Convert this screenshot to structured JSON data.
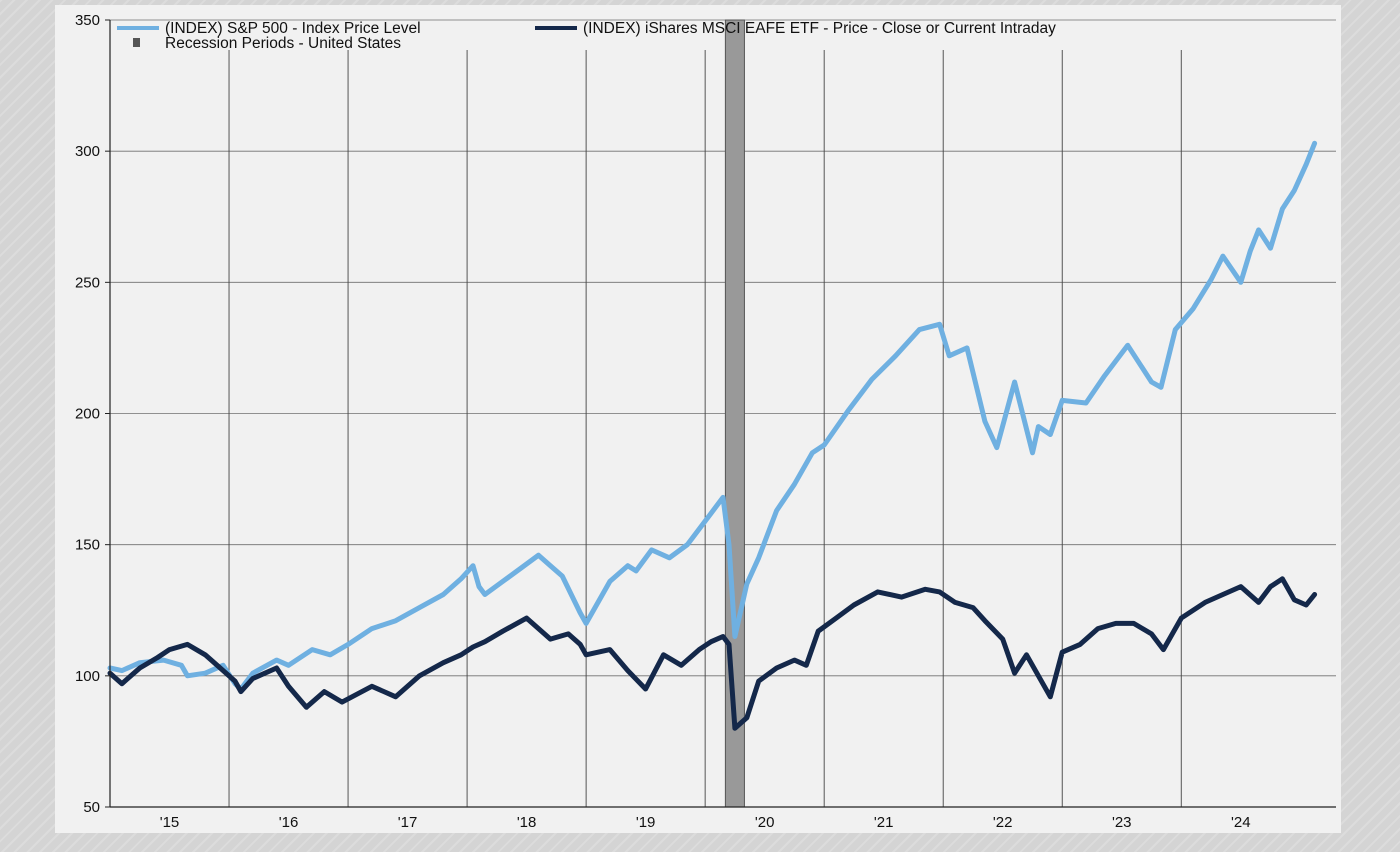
{
  "chart_data": {
    "type": "line",
    "title": "",
    "xlabel": "",
    "ylabel": "",
    "ylim": [
      50,
      350
    ],
    "yticks": [
      50,
      100,
      150,
      200,
      250,
      300,
      350
    ],
    "xlim": [
      2015.0,
      2025.3
    ],
    "xtick_labels": [
      {
        "label": "'15",
        "x": 2015.5
      },
      {
        "label": "'16",
        "x": 2016.5
      },
      {
        "label": "'17",
        "x": 2017.5
      },
      {
        "label": "'18",
        "x": 2018.5
      },
      {
        "label": "'19",
        "x": 2019.5
      },
      {
        "label": "'20",
        "x": 2020.5
      },
      {
        "label": "'21",
        "x": 2021.5
      },
      {
        "label": "'22",
        "x": 2022.5
      },
      {
        "label": "'23",
        "x": 2023.5
      },
      {
        "label": "'24",
        "x": 2024.5
      }
    ],
    "year_gridlines": [
      2015,
      2016,
      2017,
      2018,
      2019,
      2020,
      2021,
      2022,
      2023,
      2024
    ],
    "grid": true,
    "legend_position": "top-left",
    "recession_shading": {
      "name": "Recession Periods - United States",
      "start": 2020.17,
      "end": 2020.33,
      "color": "#999999"
    },
    "series": [
      {
        "name": "(INDEX) S&P 500 - Index Price Level",
        "color": "#6fb0e1",
        "x": [
          2015.0,
          2015.1,
          2015.25,
          2015.45,
          2015.6,
          2015.65,
          2015.8,
          2015.95,
          2016.05,
          2016.1,
          2016.2,
          2016.4,
          2016.5,
          2016.7,
          2016.85,
          2017.0,
          2017.2,
          2017.4,
          2017.6,
          2017.8,
          2017.95,
          2018.05,
          2018.1,
          2018.15,
          2018.3,
          2018.45,
          2018.6,
          2018.7,
          2018.8,
          2018.95,
          2019.0,
          2019.2,
          2019.35,
          2019.42,
          2019.55,
          2019.7,
          2019.85,
          2020.05,
          2020.15,
          2020.2,
          2020.25,
          2020.35,
          2020.45,
          2020.6,
          2020.75,
          2020.9,
          2021.0,
          2021.2,
          2021.4,
          2021.6,
          2021.8,
          2021.97,
          2022.05,
          2022.2,
          2022.35,
          2022.45,
          2022.6,
          2022.75,
          2022.8,
          2022.9,
          2023.0,
          2023.2,
          2023.35,
          2023.55,
          2023.75,
          2023.83,
          2023.95,
          2024.1,
          2024.25,
          2024.35,
          2024.5,
          2024.58,
          2024.65,
          2024.75,
          2024.85,
          2024.95,
          2025.05,
          2025.12
        ],
        "values": [
          103,
          102,
          105,
          106,
          104,
          100,
          101,
          104,
          97,
          95,
          101,
          106,
          104,
          110,
          108,
          112,
          118,
          121,
          126,
          131,
          137,
          142,
          134,
          131,
          136,
          141,
          146,
          142,
          138,
          124,
          120,
          136,
          142,
          140,
          148,
          145,
          150,
          162,
          168,
          150,
          115,
          135,
          145,
          163,
          173,
          185,
          188,
          201,
          213,
          222,
          232,
          234,
          222,
          225,
          197,
          187,
          212,
          185,
          195,
          192,
          205,
          204,
          214,
          226,
          212,
          210,
          232,
          240,
          251,
          260,
          250,
          262,
          270,
          263,
          278,
          285,
          295,
          303
        ]
      },
      {
        "name": "(INDEX) iShares MSCI EAFE ETF - Price - Close or Current Intraday",
        "color": "#14284a",
        "x": [
          2015.0,
          2015.1,
          2015.25,
          2015.4,
          2015.5,
          2015.65,
          2015.8,
          2015.9,
          2016.05,
          2016.1,
          2016.2,
          2016.4,
          2016.5,
          2016.65,
          2016.8,
          2016.95,
          2017.2,
          2017.4,
          2017.6,
          2017.8,
          2017.95,
          2018.05,
          2018.15,
          2018.3,
          2018.5,
          2018.7,
          2018.85,
          2018.95,
          2019.0,
          2019.2,
          2019.35,
          2019.5,
          2019.65,
          2019.8,
          2019.95,
          2020.05,
          2020.15,
          2020.2,
          2020.25,
          2020.35,
          2020.45,
          2020.6,
          2020.75,
          2020.85,
          2020.95,
          2021.1,
          2021.25,
          2021.45,
          2021.65,
          2021.85,
          2021.97,
          2022.1,
          2022.25,
          2022.35,
          2022.5,
          2022.6,
          2022.7,
          2022.8,
          2022.9,
          2023.0,
          2023.15,
          2023.3,
          2023.45,
          2023.6,
          2023.75,
          2023.85,
          2024.0,
          2024.2,
          2024.35,
          2024.5,
          2024.65,
          2024.75,
          2024.85,
          2024.95,
          2025.05,
          2025.12
        ],
        "values": [
          101,
          97,
          103,
          107,
          110,
          112,
          108,
          104,
          98,
          94,
          99,
          103,
          96,
          88,
          94,
          90,
          96,
          92,
          100,
          105,
          108,
          111,
          113,
          117,
          122,
          114,
          116,
          112,
          108,
          110,
          102,
          95,
          108,
          104,
          110,
          113,
          115,
          112,
          80,
          84,
          98,
          103,
          106,
          104,
          117,
          122,
          127,
          132,
          130,
          133,
          132,
          128,
          126,
          121,
          114,
          101,
          108,
          100,
          92,
          109,
          112,
          118,
          120,
          120,
          116,
          110,
          122,
          128,
          131,
          134,
          128,
          134,
          137,
          129,
          127,
          131
        ]
      }
    ]
  },
  "legend": {
    "sp500": "(INDEX) S&P 500 - Index Price Level",
    "eafe": "(INDEX) iShares MSCI EAFE ETF - Price - Close or Current Intraday",
    "recession": "Recession Periods - United States"
  }
}
